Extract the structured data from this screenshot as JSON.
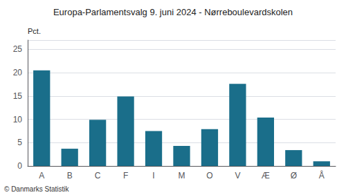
{
  "chart_data": {
    "type": "bar",
    "title": "Europa-Parlamentsvalg 9. juni 2024 - Nørreboulevardskolen",
    "ylabel": "Pct.",
    "annotations": [
      "© Danmarks Statistik"
    ],
    "categories": [
      "A",
      "B",
      "C",
      "F",
      "I",
      "M",
      "O",
      "V",
      "Æ",
      "Ø",
      "Å"
    ],
    "values": [
      20.5,
      3.7,
      9.9,
      14.9,
      7.5,
      4.3,
      7.9,
      17.6,
      10.4,
      3.4,
      1.0
    ],
    "color": "#1a6e8a",
    "ylim": [
      0,
      27
    ],
    "yticks": [
      0,
      5,
      10,
      15,
      20,
      25
    ],
    "grid": true
  }
}
